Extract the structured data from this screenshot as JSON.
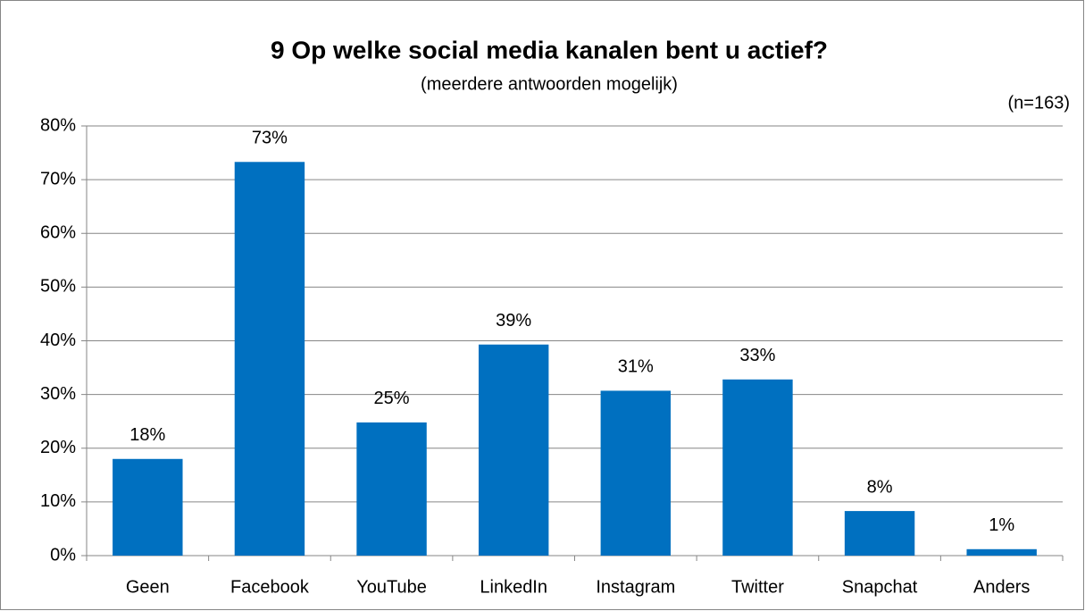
{
  "chart_data": {
    "type": "bar",
    "title": "9 Op welke social media kanalen bent u actief?",
    "subtitle": "(meerdere antwoorden mogelijk)",
    "annotation": "(n=163)",
    "categories": [
      "Geen",
      "Facebook",
      "YouTube",
      "LinkedIn",
      "Instagram",
      "Twitter",
      "Snapchat",
      "Anders"
    ],
    "values": [
      18,
      73.3,
      24.8,
      39.3,
      30.7,
      32.8,
      8.3,
      1.2
    ],
    "value_labels": [
      "18%",
      "73%",
      "25%",
      "39%",
      "31%",
      "33%",
      "8%",
      "1%"
    ],
    "color": "#0070c0",
    "ylim": [
      0,
      80
    ],
    "yticks": [
      {
        "value": 0,
        "label": "0%"
      },
      {
        "value": 10,
        "label": "10%"
      },
      {
        "value": 20,
        "label": "20%"
      },
      {
        "value": 30,
        "label": "30%"
      },
      {
        "value": 40,
        "label": "40%"
      },
      {
        "value": 50,
        "label": "50%"
      },
      {
        "value": 60,
        "label": "60%"
      },
      {
        "value": 70,
        "label": "70%"
      },
      {
        "value": 80,
        "label": "80%"
      }
    ],
    "grid": true
  }
}
